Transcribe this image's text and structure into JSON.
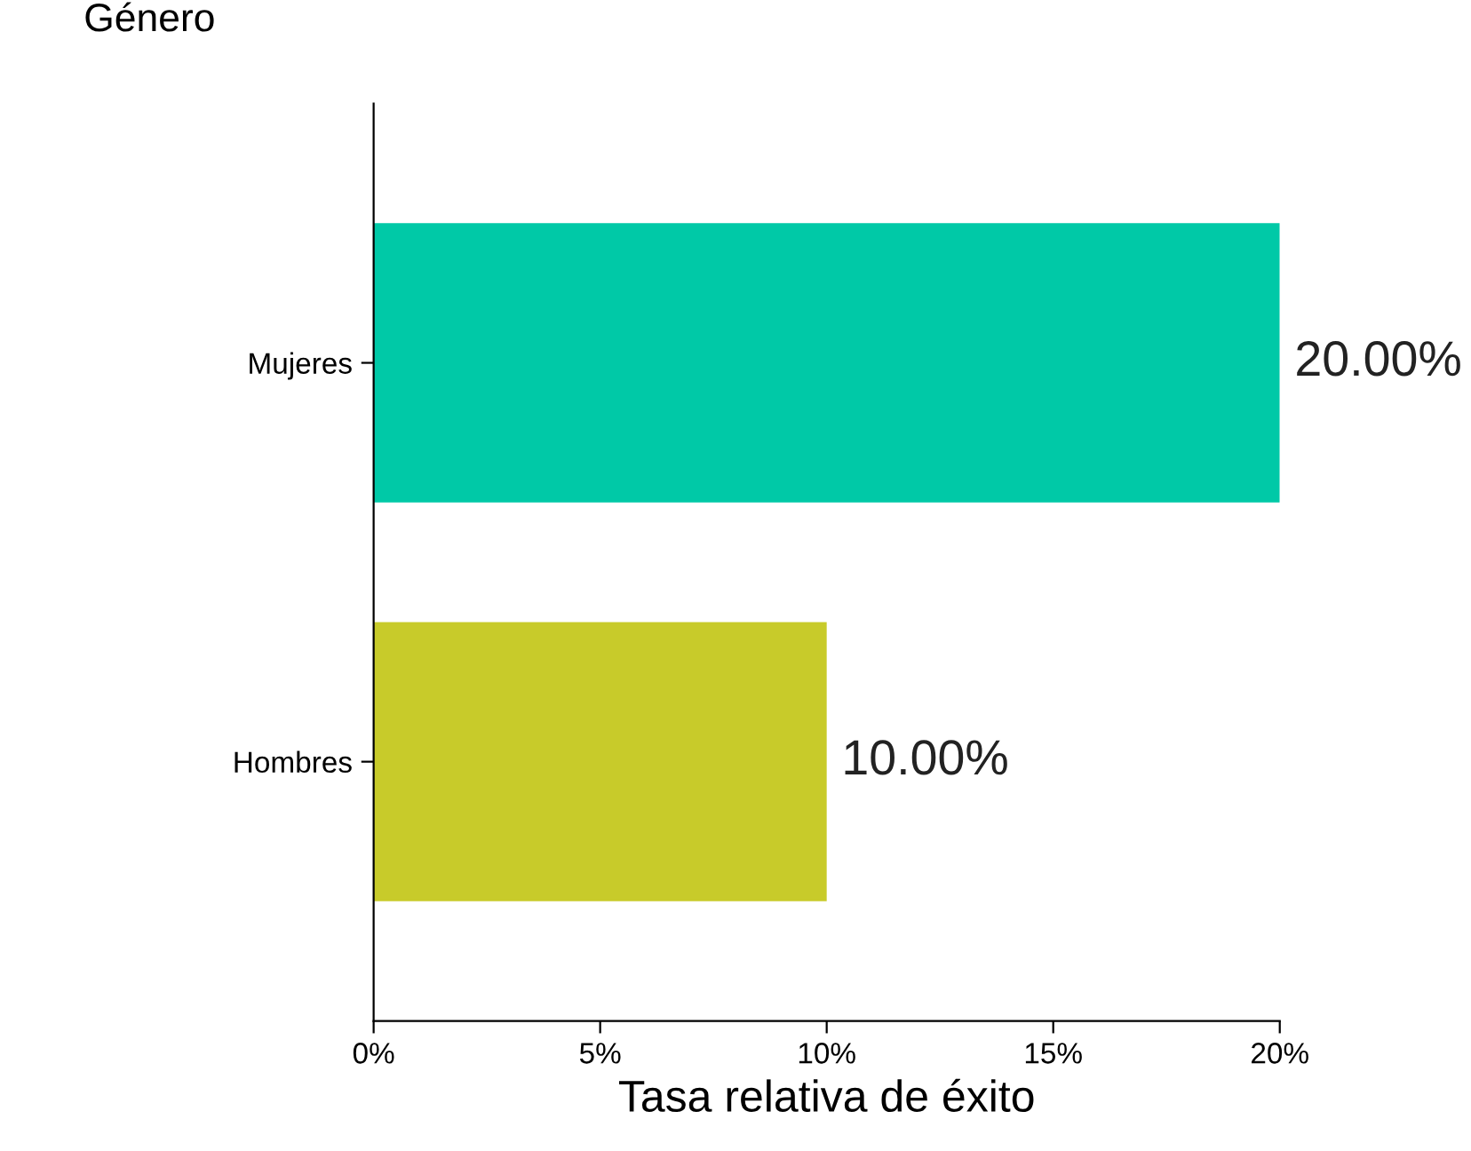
{
  "chart_data": {
    "type": "bar",
    "orientation": "horizontal",
    "ylabel": "Género",
    "xlabel": "Tasa relativa de éxito",
    "categories": [
      "Mujeres",
      "Hombres"
    ],
    "values": [
      20,
      10
    ],
    "colors": [
      "#00c9a7",
      "#c8cb2a"
    ],
    "value_labels": [
      "20.00%",
      "10.00%"
    ],
    "xlim": [
      0,
      20
    ],
    "xticks": [
      {
        "value": 0,
        "label": "0%"
      },
      {
        "value": 5,
        "label": "5%"
      },
      {
        "value": 10,
        "label": "10%"
      },
      {
        "value": 15,
        "label": "15%"
      },
      {
        "value": 20,
        "label": "20%"
      }
    ],
    "grid": false,
    "legend": false
  }
}
